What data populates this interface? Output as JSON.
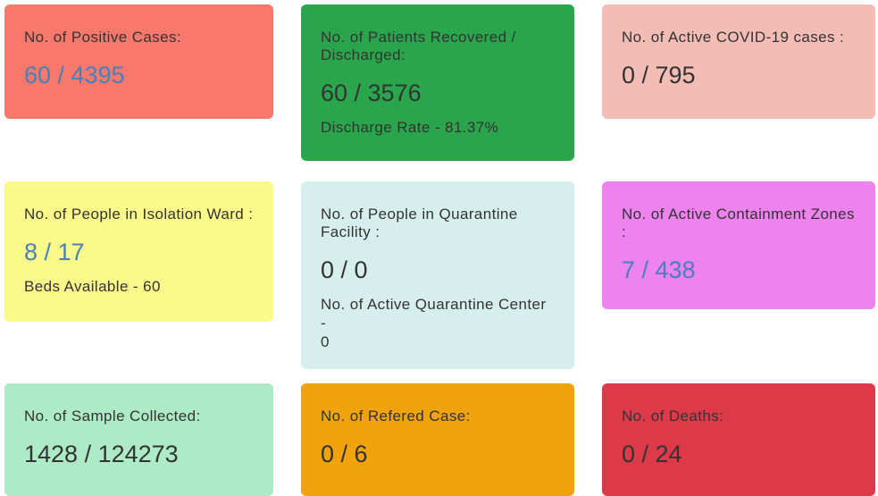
{
  "colors": {
    "link_blue": "#4581BA",
    "text_dark": "#333333",
    "page_background": "#ffffff"
  },
  "cards": [
    {
      "id": "positive-cases",
      "title": "No. of Positive Cases:",
      "value": "60 / 4395",
      "value_is_link": true,
      "bg": "#F8796C"
    },
    {
      "id": "patients-recovered",
      "title": "No. of Patients Recovered /\nDischarged:",
      "value": "60 / 3576",
      "subtext": "Discharge Rate - 81.37%",
      "value_is_link": false,
      "bg": "#2AA54B"
    },
    {
      "id": "active-covid-cases",
      "title": "No. of Active COVID-19 cases :",
      "value": "0 / 795",
      "value_is_link": false,
      "bg": "#F3BCB5"
    },
    {
      "id": "isolation-ward",
      "title": "No. of People in Isolation Ward :",
      "value": "8 / 17",
      "subtext": "Beds Available - 60",
      "value_is_link": true,
      "bg": "#FBF98A"
    },
    {
      "id": "quarantine-facility",
      "title": "No. of People in Quarantine\nFacility :",
      "value": "0 / 0",
      "subtext": "No. of Active Quarantine Center -\n0",
      "value_is_link": false,
      "bg": "#D6EFEC"
    },
    {
      "id": "containment-zones",
      "title": "No. of Active Containment Zones\n:",
      "value": "7 / 438",
      "value_is_link": true,
      "bg": "#EE82EE"
    },
    {
      "id": "sample-collected",
      "title": "No. of Sample Collected:",
      "value": "1428 / 124273",
      "value_is_link": false,
      "bg": "#ACEBC6"
    },
    {
      "id": "refered-case",
      "title": "No. of Refered Case:",
      "value": "0 / 6",
      "value_is_link": false,
      "bg": "#F0A30C"
    },
    {
      "id": "deaths",
      "title": "No. of Deaths:",
      "value": "0 / 24",
      "value_is_link": false,
      "bg": "#DC3A49"
    }
  ]
}
